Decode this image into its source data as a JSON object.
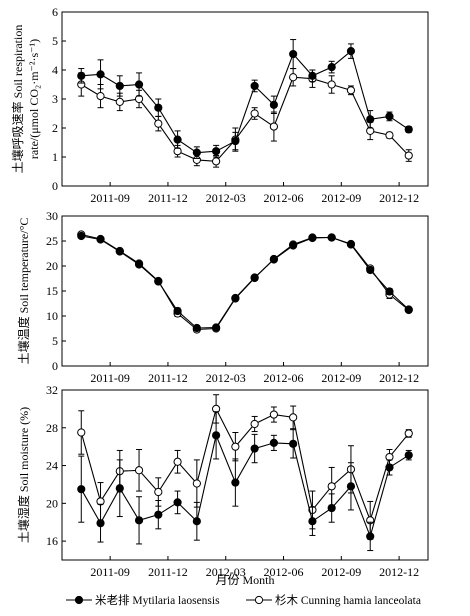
{
  "x_ticks": [
    "2011-09",
    "2011-12",
    "2012-03",
    "2012-06",
    "2012-09",
    "2012-12"
  ],
  "xlabel": "月份  Month",
  "legend": [
    {
      "label": "米老排 Mytilaria laosensis",
      "marker": "filled-circle"
    },
    {
      "label": "杉木 Cunning hamia lanceolata",
      "marker": "open-circle"
    }
  ],
  "chart_data": [
    {
      "type": "line",
      "ylabel_line1": "土壤呼吸速率 Soil respiration",
      "ylabel_line2": "rate/(μmol CO₂·m⁻²·s⁻¹)",
      "ylim": [
        0,
        6
      ],
      "yticks": [
        "0",
        "1",
        "2",
        "3",
        "4",
        "5",
        "6"
      ],
      "x_months": [
        7.5,
        8.5,
        9.5,
        10.5,
        11.5,
        12.5,
        13.5,
        14.5,
        15.5,
        16.5,
        17.5,
        18.5,
        19.5,
        20.5,
        21.5,
        22.5,
        23.5,
        24.5
      ],
      "series": [
        {
          "name": "米老排 Mytilaria laosensis",
          "marker": "filled",
          "values": [
            3.8,
            3.85,
            3.45,
            3.5,
            2.7,
            1.6,
            1.15,
            1.2,
            1.55,
            3.45,
            2.8,
            4.55,
            3.8,
            4.1,
            4.65,
            2.3,
            2.4,
            1.95
          ],
          "errors": [
            0.25,
            0.5,
            0.35,
            0.4,
            0.3,
            0.3,
            0.2,
            0.2,
            0.3,
            0.2,
            0.3,
            0.5,
            0.2,
            0.2,
            0.25,
            0.3,
            0.15,
            0.1
          ]
        },
        {
          "name": "杉木 Cunning hamia lanceolata",
          "marker": "open",
          "values": [
            3.5,
            3.1,
            2.9,
            3.0,
            2.15,
            1.2,
            0.9,
            0.85,
            1.6,
            2.5,
            2.05,
            3.75,
            3.7,
            3.5,
            3.3,
            1.9,
            1.75,
            1.05
          ],
          "errors": [
            0.4,
            0.4,
            0.3,
            0.3,
            0.25,
            0.2,
            0.2,
            0.2,
            0.4,
            0.2,
            0.5,
            0.3,
            0.3,
            0.3,
            0.15,
            0.3,
            0.1,
            0.2
          ]
        }
      ]
    },
    {
      "type": "line",
      "ylabel_line1": "土壤温度 Soil temperature/°C",
      "ylim": [
        0,
        30
      ],
      "yticks": [
        "0",
        "5",
        "10",
        "15",
        "20",
        "25",
        "30"
      ],
      "x_months": [
        7.5,
        8.5,
        9.5,
        10.5,
        11.5,
        12.5,
        13.5,
        14.5,
        15.5,
        16.5,
        17.5,
        18.5,
        19.5,
        20.5,
        21.5,
        22.5,
        23.5,
        24.5
      ],
      "series": [
        {
          "name": "米老排 Mytilaria laosensis",
          "marker": "filled",
          "values": [
            26.0,
            25.3,
            22.9,
            20.3,
            16.9,
            11.0,
            7.6,
            7.7,
            13.6,
            17.7,
            21.3,
            24.1,
            25.6,
            25.7,
            24.3,
            19.2,
            14.9,
            11.3
          ],
          "errors": [
            0.3,
            0.3,
            0.3,
            0.3,
            0.3,
            0.6,
            0.5,
            0.4,
            0.3,
            0.3,
            0.3,
            0.4,
            0.3,
            0.3,
            0.3,
            0.5,
            0.6,
            0.3
          ]
        },
        {
          "name": "杉木 Cunning hamia lanceolata",
          "marker": "open",
          "values": [
            26.3,
            25.4,
            23.0,
            20.5,
            17.0,
            10.5,
            7.3,
            7.5,
            13.5,
            17.6,
            21.4,
            24.3,
            25.7,
            25.7,
            24.4,
            19.5,
            14.3,
            11.2
          ],
          "errors": [
            0.3,
            0.3,
            0.3,
            0.3,
            0.3,
            0.6,
            0.5,
            0.4,
            0.3,
            0.3,
            0.3,
            0.4,
            0.3,
            0.3,
            0.3,
            0.5,
            0.8,
            0.3
          ]
        }
      ]
    },
    {
      "type": "line",
      "ylabel_line1": "土壤湿度 Soil moisture (%)",
      "ylim": [
        14,
        32
      ],
      "yticks": [
        "16",
        "20",
        "24",
        "28",
        "32"
      ],
      "x_months": [
        7.5,
        8.5,
        9.5,
        10.5,
        11.5,
        12.5,
        13.5,
        14.5,
        15.5,
        16.5,
        17.5,
        18.5,
        19.5,
        20.5,
        21.5,
        22.5,
        23.5,
        24.5
      ],
      "series": [
        {
          "name": "米老排 Mytilaria laosensis",
          "marker": "filled",
          "values": [
            21.5,
            17.9,
            21.6,
            18.2,
            18.8,
            20.1,
            18.1,
            27.2,
            22.2,
            25.8,
            26.4,
            26.3,
            18.1,
            19.5,
            21.8,
            16.5,
            23.8,
            25.1
          ],
          "errors": [
            3.5,
            2.0,
            3.0,
            2.5,
            1.5,
            1.2,
            2.0,
            2.5,
            2.5,
            1.5,
            0.8,
            1.5,
            1.5,
            1.5,
            2.5,
            1.5,
            0.8,
            0.5
          ]
        },
        {
          "name": "杉木 Cunning hamia lanceolata",
          "marker": "open",
          "values": [
            27.5,
            20.2,
            23.4,
            23.5,
            21.2,
            24.4,
            22.1,
            30.0,
            26.0,
            28.4,
            29.4,
            29.1,
            19.3,
            21.8,
            23.6,
            18.2,
            24.9,
            27.4
          ],
          "errors": [
            2.3,
            2.0,
            2.2,
            2.2,
            1.5,
            1.2,
            2.5,
            1.5,
            1.5,
            0.8,
            0.8,
            1.2,
            2.0,
            2.0,
            2.5,
            2.0,
            0.8,
            0.4
          ]
        }
      ]
    }
  ]
}
